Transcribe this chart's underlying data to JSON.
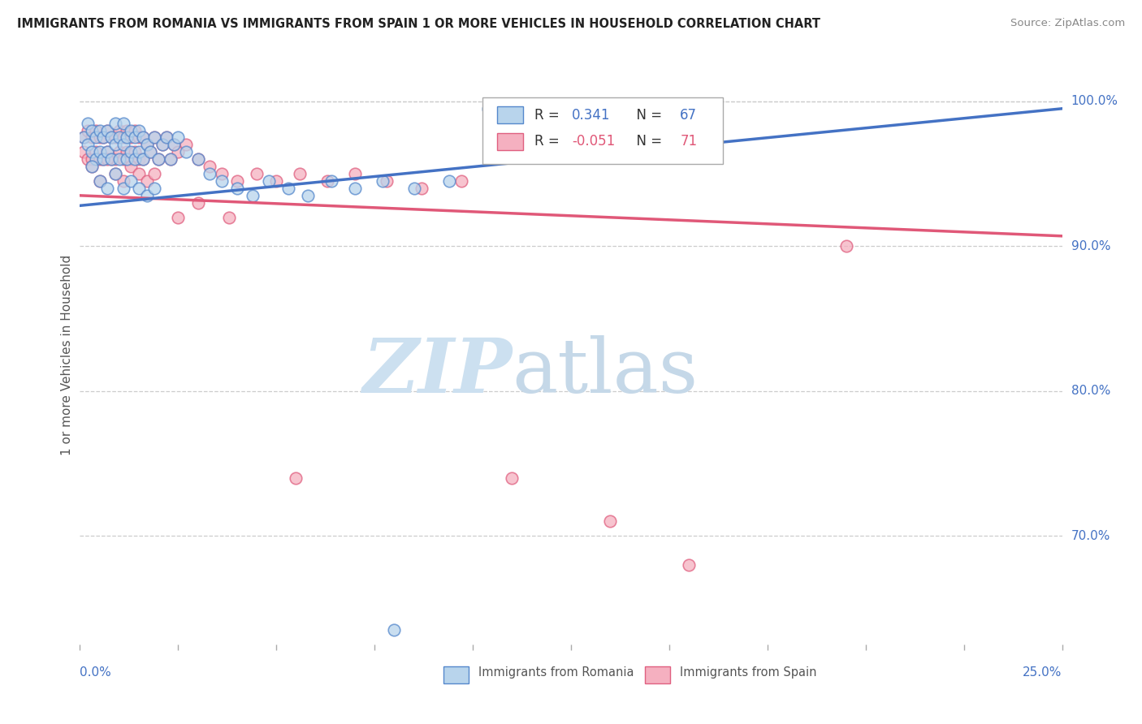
{
  "title": "IMMIGRANTS FROM ROMANIA VS IMMIGRANTS FROM SPAIN 1 OR MORE VEHICLES IN HOUSEHOLD CORRELATION CHART",
  "source": "Source: ZipAtlas.com",
  "ylabel": "1 or more Vehicles in Household",
  "xlim": [
    0.0,
    0.25
  ],
  "ylim": [
    0.625,
    1.025
  ],
  "yticks": [
    0.7,
    0.8,
    0.9,
    1.0
  ],
  "ytick_labels": [
    "70.0%",
    "80.0%",
    "90.0%",
    "100.0%"
  ],
  "xtick_left_label": "0.0%",
  "xtick_right_label": "25.0%",
  "romania_R": "0.341",
  "romania_N": "67",
  "spain_R": "-0.051",
  "spain_N": "71",
  "romania_dot_color": "#b8d4ec",
  "romania_edge_color": "#5588cc",
  "romania_line_color": "#4472c4",
  "spain_dot_color": "#f5b0c0",
  "spain_edge_color": "#e06080",
  "spain_line_color": "#e05878",
  "grid_color": "#cccccc",
  "axis_label_color": "#4472c4",
  "title_color": "#222222",
  "source_color": "#888888",
  "ylabel_color": "#555555",
  "romania_x": [
    0.001,
    0.002,
    0.002,
    0.003,
    0.003,
    0.004,
    0.004,
    0.005,
    0.005,
    0.006,
    0.006,
    0.007,
    0.007,
    0.008,
    0.008,
    0.009,
    0.009,
    0.01,
    0.01,
    0.011,
    0.011,
    0.012,
    0.012,
    0.013,
    0.013,
    0.014,
    0.014,
    0.015,
    0.015,
    0.016,
    0.016,
    0.017,
    0.018,
    0.019,
    0.02,
    0.021,
    0.022,
    0.023,
    0.024,
    0.025,
    0.027,
    0.03,
    0.033,
    0.036,
    0.04,
    0.044,
    0.048,
    0.053,
    0.058,
    0.064,
    0.07,
    0.077,
    0.085,
    0.094,
    0.104,
    0.115,
    0.127,
    0.003,
    0.005,
    0.007,
    0.009,
    0.011,
    0.013,
    0.015,
    0.017,
    0.019,
    0.08
  ],
  "romania_y": [
    0.975,
    0.985,
    0.97,
    0.98,
    0.965,
    0.975,
    0.96,
    0.98,
    0.965,
    0.975,
    0.96,
    0.98,
    0.965,
    0.975,
    0.96,
    0.97,
    0.985,
    0.975,
    0.96,
    0.97,
    0.985,
    0.975,
    0.96,
    0.98,
    0.965,
    0.975,
    0.96,
    0.98,
    0.965,
    0.975,
    0.96,
    0.97,
    0.965,
    0.975,
    0.96,
    0.97,
    0.975,
    0.96,
    0.97,
    0.975,
    0.965,
    0.96,
    0.95,
    0.945,
    0.94,
    0.935,
    0.945,
    0.94,
    0.935,
    0.945,
    0.94,
    0.945,
    0.94,
    0.945,
    0.995,
    0.985,
    0.99,
    0.955,
    0.945,
    0.94,
    0.95,
    0.94,
    0.945,
    0.94,
    0.935,
    0.94,
    0.635
  ],
  "spain_x": [
    0.001,
    0.001,
    0.002,
    0.002,
    0.003,
    0.003,
    0.004,
    0.004,
    0.005,
    0.005,
    0.006,
    0.006,
    0.007,
    0.007,
    0.008,
    0.008,
    0.009,
    0.009,
    0.01,
    0.01,
    0.011,
    0.011,
    0.012,
    0.012,
    0.013,
    0.013,
    0.014,
    0.014,
    0.015,
    0.015,
    0.016,
    0.016,
    0.017,
    0.018,
    0.019,
    0.02,
    0.021,
    0.022,
    0.023,
    0.024,
    0.025,
    0.027,
    0.03,
    0.033,
    0.036,
    0.04,
    0.045,
    0.05,
    0.056,
    0.063,
    0.07,
    0.078,
    0.087,
    0.097,
    0.003,
    0.005,
    0.007,
    0.009,
    0.011,
    0.013,
    0.015,
    0.017,
    0.019,
    0.025,
    0.03,
    0.038,
    0.055,
    0.11,
    0.135,
    0.155,
    0.195
  ],
  "spain_y": [
    0.975,
    0.965,
    0.98,
    0.96,
    0.975,
    0.96,
    0.98,
    0.965,
    0.975,
    0.96,
    0.975,
    0.96,
    0.98,
    0.965,
    0.975,
    0.96,
    0.975,
    0.96,
    0.98,
    0.965,
    0.975,
    0.96,
    0.98,
    0.965,
    0.975,
    0.96,
    0.98,
    0.965,
    0.975,
    0.96,
    0.975,
    0.96,
    0.97,
    0.965,
    0.975,
    0.96,
    0.97,
    0.975,
    0.96,
    0.97,
    0.965,
    0.97,
    0.96,
    0.955,
    0.95,
    0.945,
    0.95,
    0.945,
    0.95,
    0.945,
    0.95,
    0.945,
    0.94,
    0.945,
    0.955,
    0.945,
    0.96,
    0.95,
    0.945,
    0.955,
    0.95,
    0.945,
    0.95,
    0.92,
    0.93,
    0.92,
    0.74,
    0.74,
    0.71,
    0.68,
    0.9
  ]
}
